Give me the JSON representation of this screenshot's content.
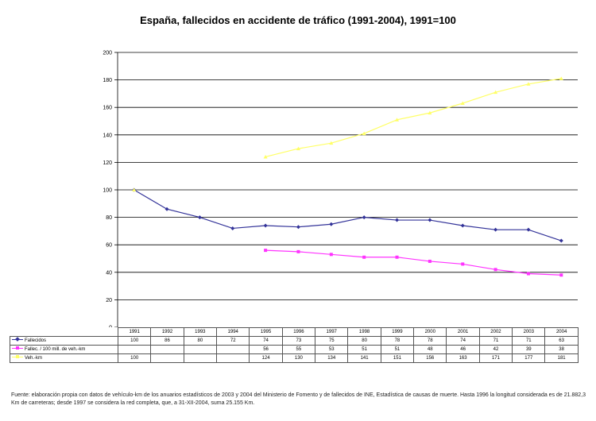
{
  "chart_data": {
    "type": "line",
    "title": "España, fallecidos en accidente de tráfico (1991-2004), 1991=100",
    "categories": [
      "1991",
      "1992",
      "1993",
      "1994",
      "1995",
      "1996",
      "1997",
      "1998",
      "1999",
      "2000",
      "2001",
      "2002",
      "2003",
      "2004"
    ],
    "ylim": [
      0,
      200
    ],
    "yticks": [
      "0",
      "20",
      "40",
      "60",
      "80",
      "100",
      "120",
      "140",
      "160",
      "180",
      "200"
    ],
    "grid": true,
    "series": [
      {
        "name": "Fallecidos",
        "color": "#333399",
        "marker": "diamond",
        "values": [
          100,
          86,
          80,
          72,
          74,
          73,
          75,
          80,
          78,
          78,
          74,
          71,
          71,
          63
        ]
      },
      {
        "name": "Fallec. / 100 mill. de veh.-km",
        "color": "#ff33ff",
        "marker": "square",
        "values": [
          null,
          null,
          null,
          null,
          56,
          55,
          53,
          51,
          51,
          48,
          46,
          42,
          39,
          38
        ]
      },
      {
        "name": "Veh.-km",
        "color": "#ffff66",
        "marker": "triangle",
        "values": [
          100,
          null,
          null,
          null,
          124,
          130,
          134,
          141,
          151,
          156,
          163,
          171,
          177,
          181
        ]
      }
    ]
  },
  "footnote": "Fuente: elaboración propia con datos de vehículo-km de los anuarios estadísticos de 2003 y 2004 del Ministerio de Fomento y de fallecidos de INE, Estadística de causas de muerte. Hasta 1996 la longitud considerada es de 21.882,3 Km de carreteras; desde 1997 se considera la red completa, que, a 31-XII-2004, suma 25.155 Km."
}
